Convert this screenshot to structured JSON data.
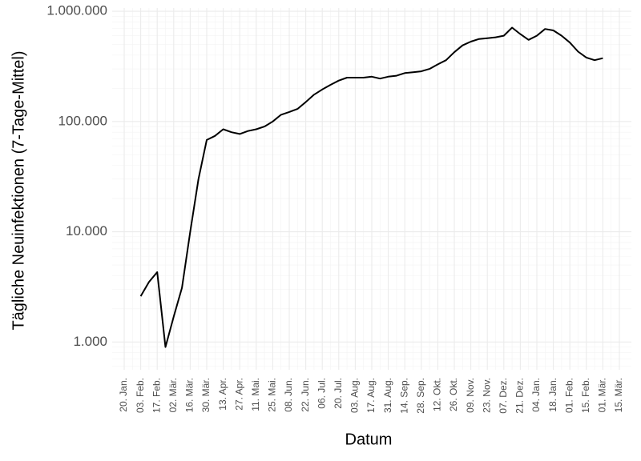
{
  "chart_data": {
    "type": "line",
    "x_label": "Datum",
    "y_label": "Tägliche Neuinfektionen (7-Tage-Mittel)",
    "categories": [
      "20. Jan.",
      null,
      "03. Feb.",
      null,
      "17. Feb.",
      null,
      "02. Mär.",
      null,
      "16. Mär.",
      null,
      "30. Mär.",
      null,
      "13. Apr.",
      null,
      "27. Apr.",
      null,
      "11. Mai.",
      null,
      "25. Mai.",
      null,
      "08. Jun.",
      null,
      "22. Jun.",
      null,
      "06. Jul.",
      null,
      "20. Jul.",
      null,
      "03. Aug.",
      null,
      "17. Aug.",
      null,
      "31. Aug.",
      null,
      "14. Sep.",
      null,
      "28. Sep.",
      null,
      "12. Okt.",
      null,
      "26. Okt.",
      null,
      "09. Nov.",
      null,
      "23. Nov.",
      null,
      "07. Dez.",
      null,
      "21. Dez.",
      null,
      "04. Jan.",
      null,
      "18. Jan.",
      null,
      "01. Feb.",
      null,
      "15. Feb.",
      null,
      "01. Mär.",
      null,
      "15. Mär."
    ],
    "values": [
      null,
      null,
      2600,
      3500,
      4300,
      900,
      1700,
      3100,
      10000,
      30000,
      68000,
      74000,
      85000,
      80000,
      77000,
      82000,
      85000,
      90000,
      100000,
      115000,
      122000,
      130000,
      150000,
      175000,
      195000,
      215000,
      235000,
      250000,
      250000,
      250000,
      255000,
      245000,
      255000,
      260000,
      275000,
      280000,
      285000,
      300000,
      330000,
      360000,
      425000,
      490000,
      530000,
      560000,
      570000,
      580000,
      600000,
      710000,
      620000,
      550000,
      600000,
      690000,
      670000,
      600000,
      520000,
      430000,
      380000,
      360000,
      375000,
      null,
      null
    ],
    "color": "#000000",
    "log_y": true,
    "ylim": [
      560,
      1070000
    ],
    "yticks": [
      {
        "value": 1000,
        "label": "1.000"
      },
      {
        "value": 10000,
        "label": "10.000"
      },
      {
        "value": 100000,
        "label": "100.000"
      },
      {
        "value": 1000000,
        "label": "1.000.000"
      }
    ],
    "grid": true
  }
}
